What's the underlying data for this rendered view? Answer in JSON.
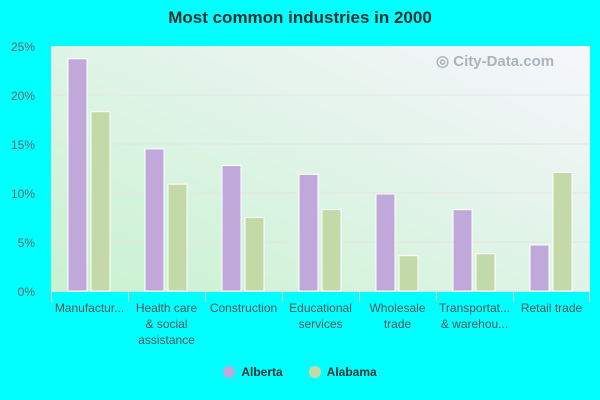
{
  "chart_data": {
    "type": "bar",
    "title": "Most common industries in 2000",
    "categories": [
      [
        "Manufactur..."
      ],
      [
        "Health care",
        "& social",
        "assistance"
      ],
      [
        "Construction"
      ],
      [
        "Educational",
        "services"
      ],
      [
        "Wholesale",
        "trade"
      ],
      [
        "Transportat...",
        "& warehou..."
      ],
      [
        "Retail trade"
      ]
    ],
    "series": [
      {
        "name": "Alberta",
        "color": "#c0a9da",
        "values": [
          23.7,
          14.5,
          12.8,
          11.9,
          9.9,
          8.3,
          4.7
        ]
      },
      {
        "name": "Alabama",
        "color": "#c4d9a8",
        "values": [
          18.3,
          10.9,
          7.5,
          8.3,
          3.6,
          3.8,
          12.1
        ]
      }
    ],
    "yticks": [
      "0%",
      "5%",
      "10%",
      "15%",
      "20%",
      "25%"
    ],
    "ylim": [
      0,
      25
    ],
    "grid": true,
    "legend": "bottom",
    "watermark": "City-Data.com"
  }
}
